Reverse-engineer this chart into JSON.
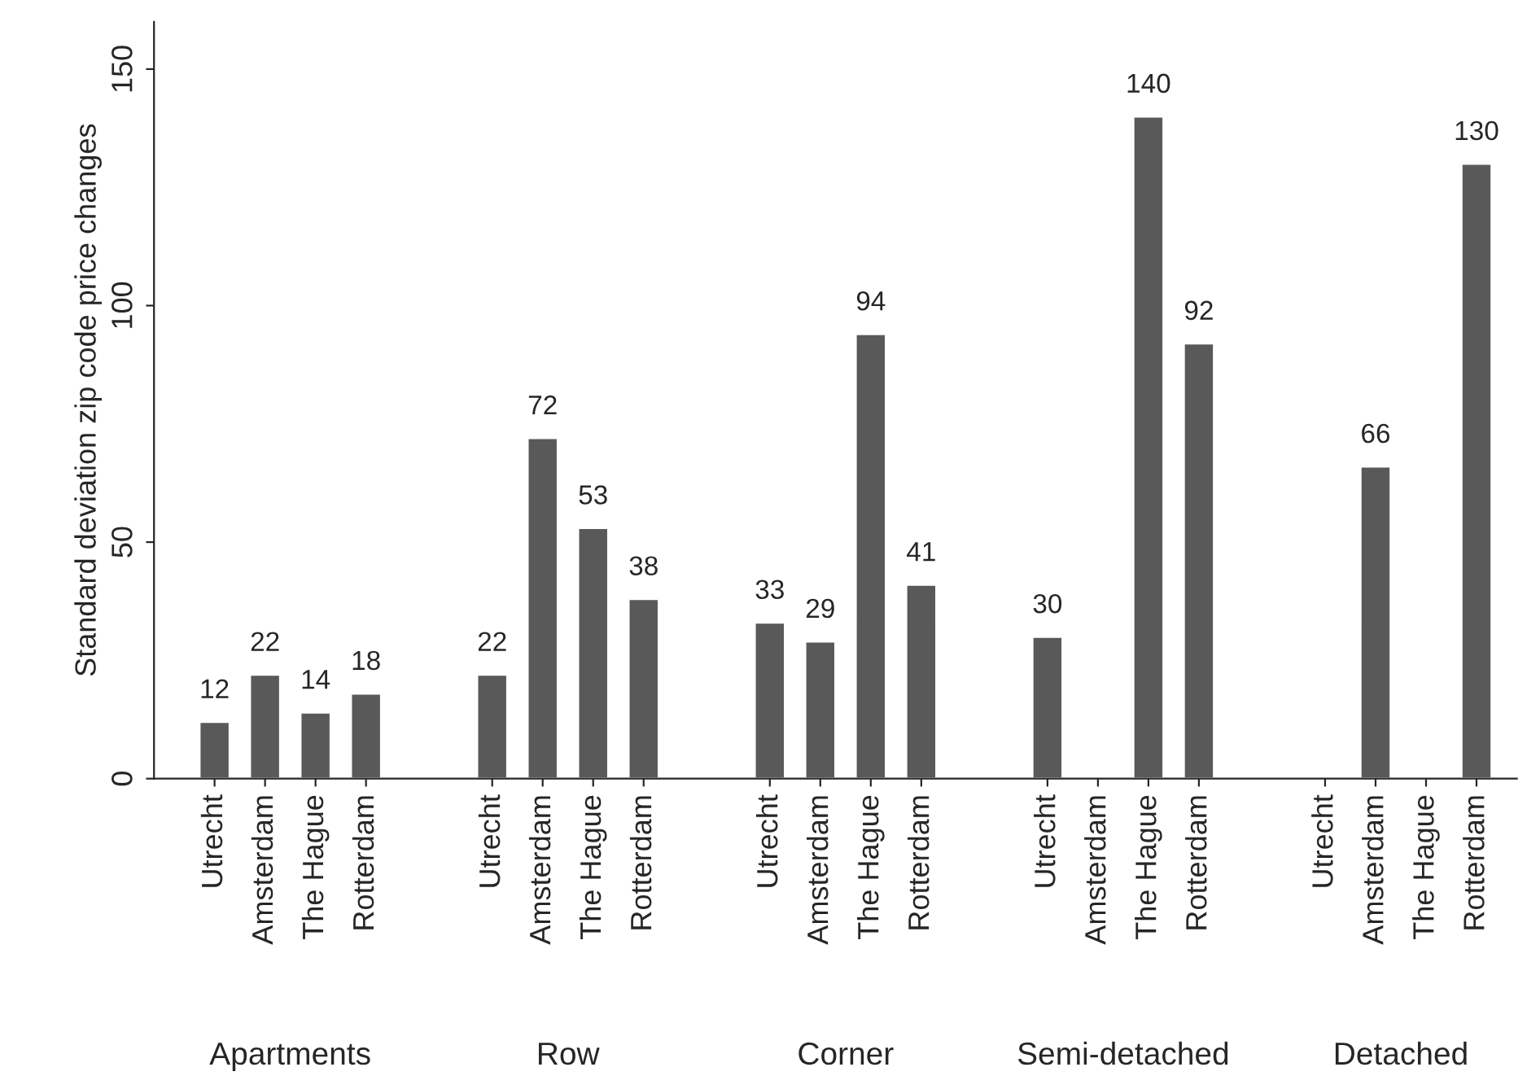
{
  "chart_data": {
    "type": "bar",
    "ylabel": "Standard deviation zip code price changes",
    "categories": [
      "Utrecht",
      "Amsterdam",
      "The Hague",
      "Rotterdam",
      "Utrecht",
      "Amsterdam",
      "The Hague",
      "Rotterdam",
      "Utrecht",
      "Amsterdam",
      "The Hague",
      "Rotterdam",
      "Utrecht",
      "Amsterdam",
      "The Hague",
      "Rotterdam",
      "Utrecht",
      "Amsterdam",
      "The Hague",
      "Rotterdam"
    ],
    "values": [
      12,
      22,
      14,
      18,
      22,
      72,
      53,
      38,
      33,
      29,
      94,
      41,
      30,
      null,
      140,
      92,
      null,
      66,
      null,
      130
    ],
    "color": "#595959",
    "data_labels": true,
    "ylim": [
      0,
      160
    ],
    "yticks": [
      0,
      50,
      100,
      150
    ],
    "grid": false,
    "legend": false,
    "annotations": [
      "Apartments",
      "Row",
      "Corner",
      "Semi-detached",
      "Detached"
    ]
  }
}
